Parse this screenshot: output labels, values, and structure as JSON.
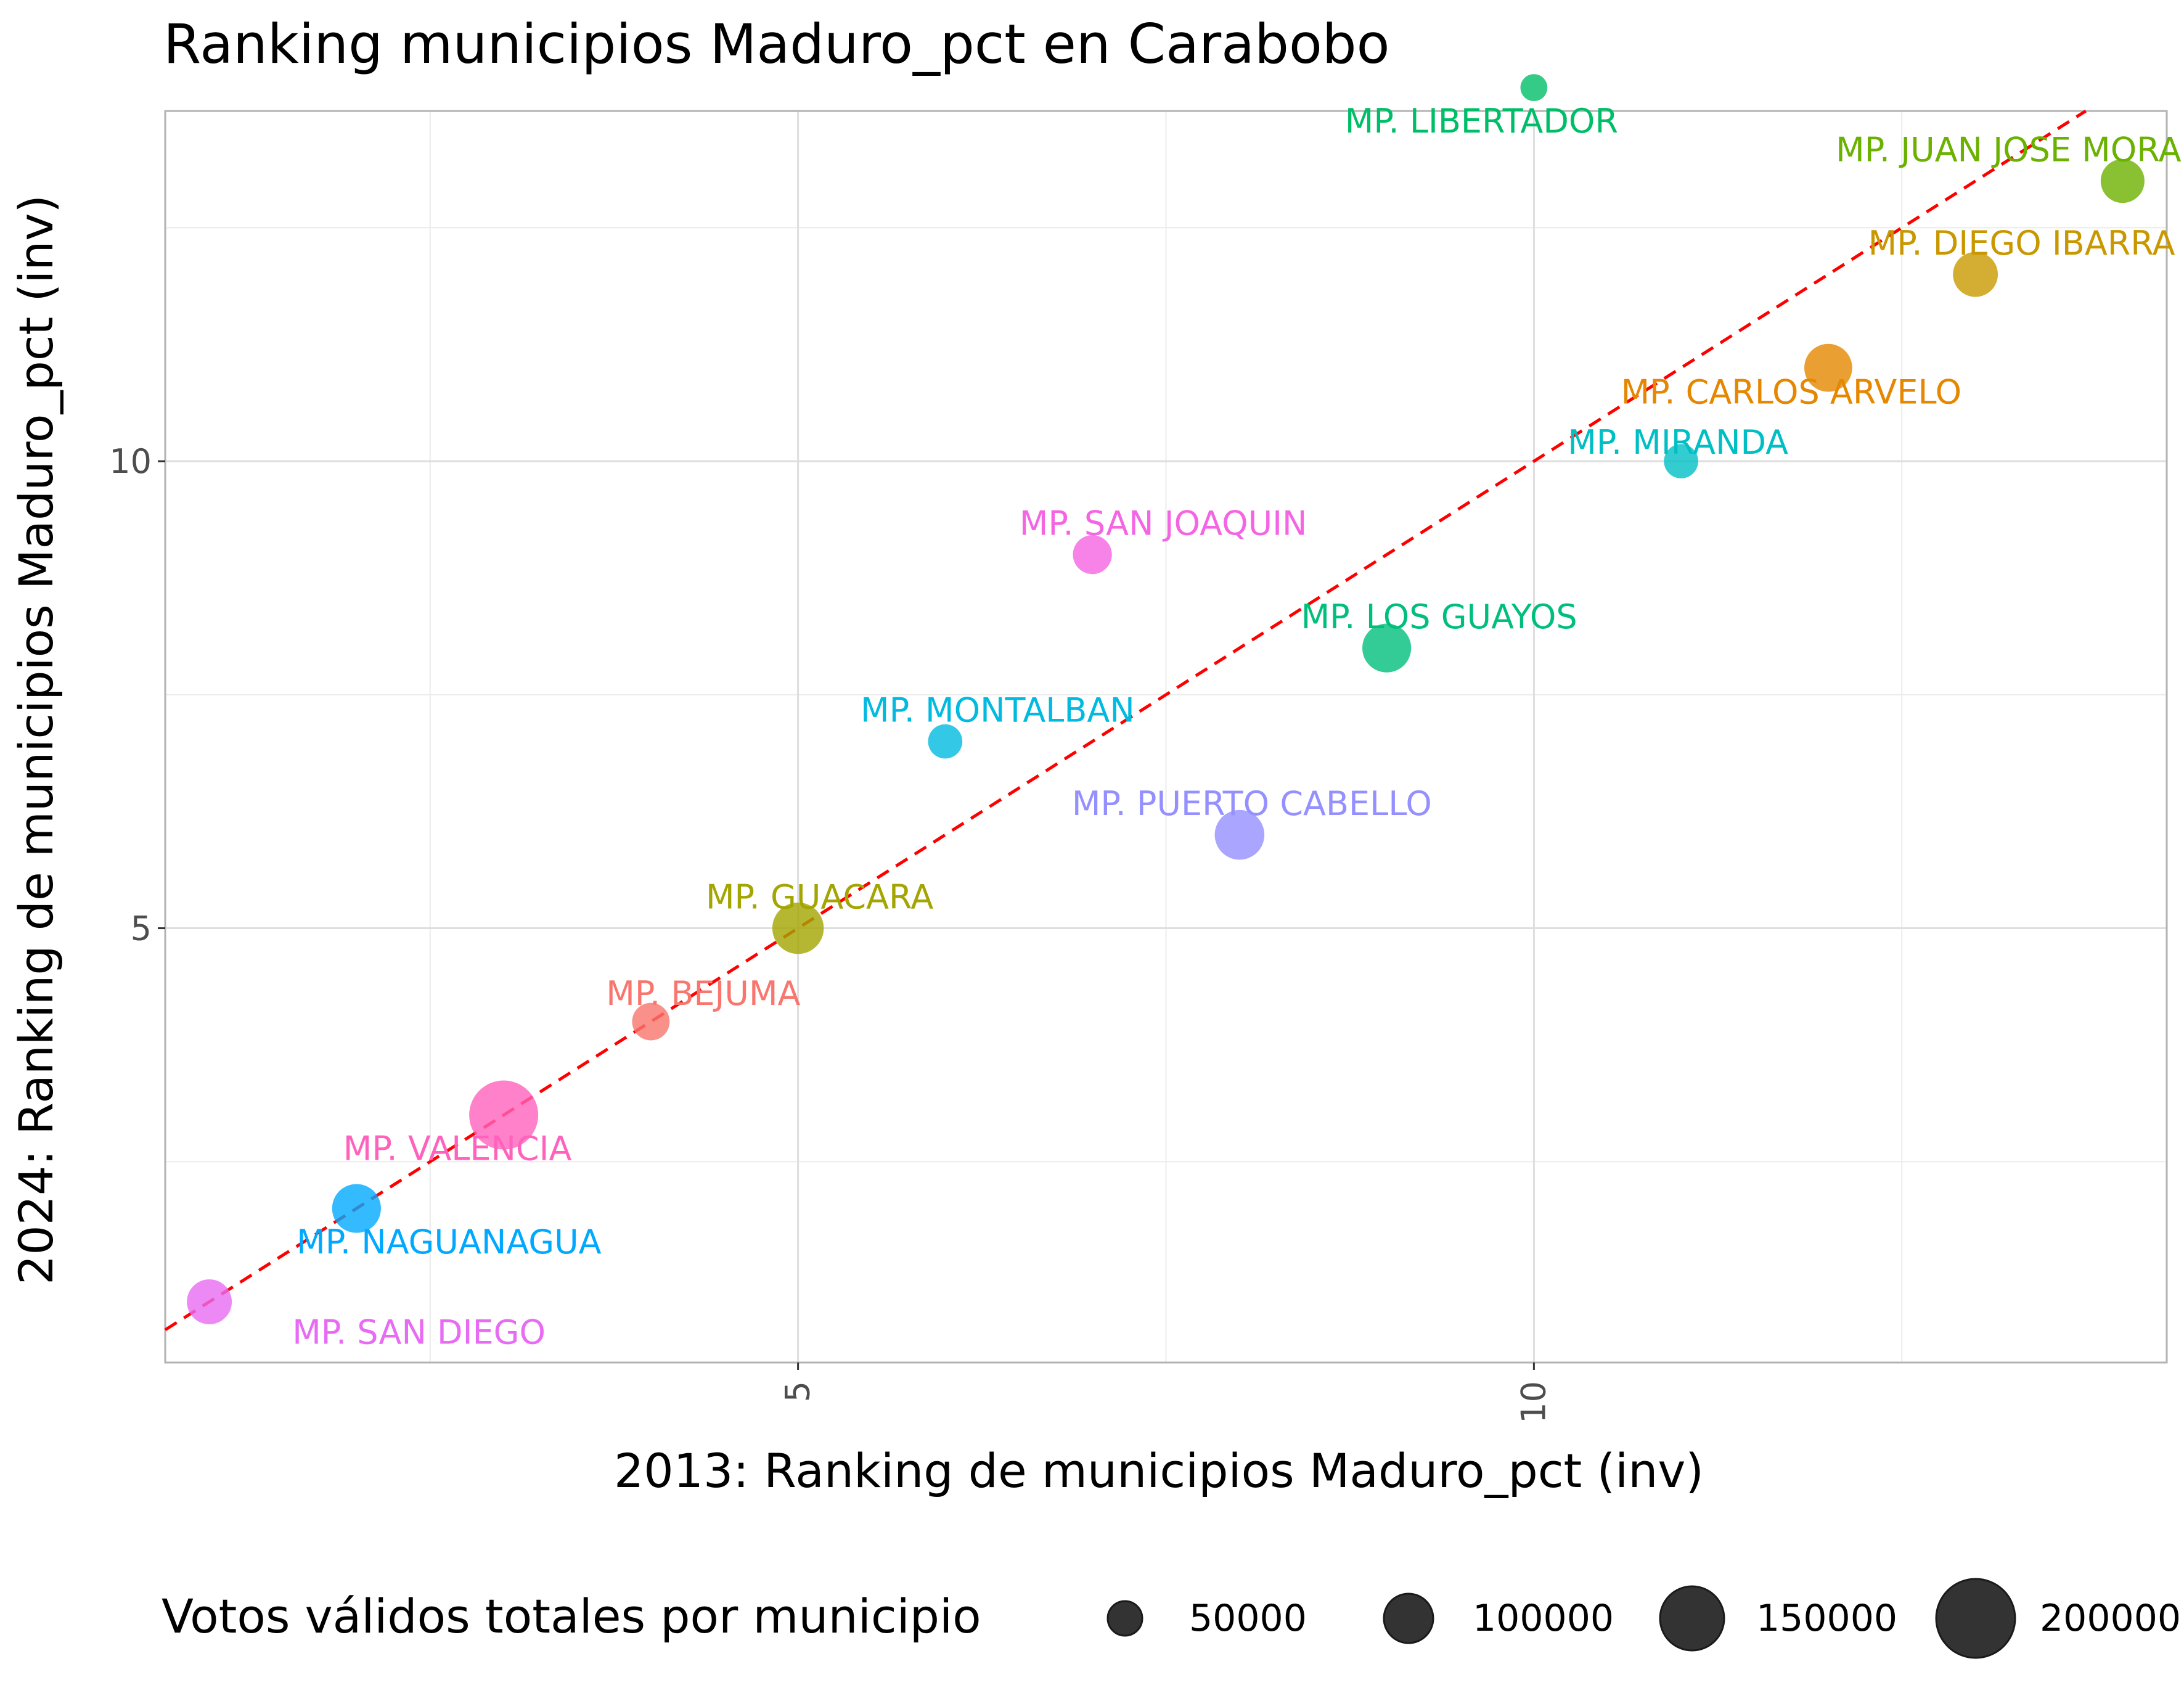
{
  "chart_data": {
    "type": "scatter",
    "title": "Ranking municipios Maduro_pct en Carabobo",
    "xlabel": "2013: Ranking de municipios Maduro_pct (inv)",
    "ylabel": "2024: Ranking de municipios Maduro_pct (inv)",
    "xlim": [
      0.7,
      14.3
    ],
    "ylim": [
      0.35,
      13.75
    ],
    "x_ticks": [
      5,
      10
    ],
    "y_ticks": [
      5,
      10
    ],
    "grid": true,
    "reference_line": {
      "type": "identity",
      "color": "#ff0000",
      "style": "dashed"
    },
    "legend": {
      "title": "Votos válidos totales por municipio",
      "position": "bottom",
      "entries": [
        {
          "label": "50000",
          "value": 50000
        },
        {
          "label": "100000",
          "value": 100000
        },
        {
          "label": "150000",
          "value": 150000
        },
        {
          "label": "200000",
          "value": 200000
        }
      ]
    },
    "points": [
      {
        "label": "MP. SAN DIEGO",
        "x": 1,
        "y": 1,
        "votes": 60000,
        "color": "#e76bf3"
      },
      {
        "label": "MP. NAGUANAGUA",
        "x": 2,
        "y": 2,
        "votes": 80000,
        "color": "#00a9ff"
      },
      {
        "label": "MP. VALENCIA",
        "x": 3,
        "y": 3,
        "votes": 230000,
        "color": "#ff62bc"
      },
      {
        "label": "MP. BEJUMA",
        "x": 4,
        "y": 4,
        "votes": 30000,
        "color": "#f8766d"
      },
      {
        "label": "MP. GUACARA",
        "x": 5,
        "y": 5,
        "votes": 95000,
        "color": "#a3a500"
      },
      {
        "label": "MP. MONTALBAN",
        "x": 6,
        "y": 7,
        "votes": 20000,
        "color": "#00bae0"
      },
      {
        "label": "MP. SAN JOAQUIN",
        "x": 7,
        "y": 9,
        "votes": 35000,
        "color": "#f564e3"
      },
      {
        "label": "MP. PUERTO CABELLO",
        "x": 8,
        "y": 6,
        "votes": 85000,
        "color": "#9590ff"
      },
      {
        "label": "MP. LOS GUAYOS",
        "x": 9,
        "y": 8,
        "votes": 80000,
        "color": "#00bf7d"
      },
      {
        "label": "MP. LIBERTADOR",
        "x": 10,
        "y": 14,
        "votes": 5000,
        "color": "#00be67"
      },
      {
        "label": "MP. MIRANDA",
        "x": 11,
        "y": 10,
        "votes": 20000,
        "color": "#00bfc4"
      },
      {
        "label": "MP. CARLOS ARVELO",
        "x": 12,
        "y": 11,
        "votes": 75000,
        "color": "#e58700"
      },
      {
        "label": "MP. DIEGO IBARRA",
        "x": 13,
        "y": 12,
        "votes": 60000,
        "color": "#c99800"
      },
      {
        "label": "MP. JUAN JOSE MORA",
        "x": 14,
        "y": 13,
        "votes": 55000,
        "color": "#6bb100"
      }
    ]
  }
}
